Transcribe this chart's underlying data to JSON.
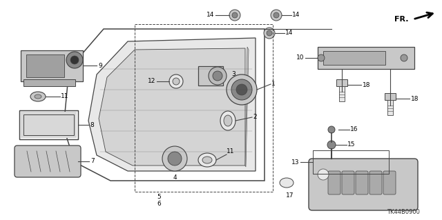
{
  "bg_color": "#ffffff",
  "diagram_code": "TK44B0900",
  "line_color": "#444444",
  "gray_fill": "#c8c8c8",
  "light_gray": "#e8e8e8",
  "dark_fill": "#888888"
}
